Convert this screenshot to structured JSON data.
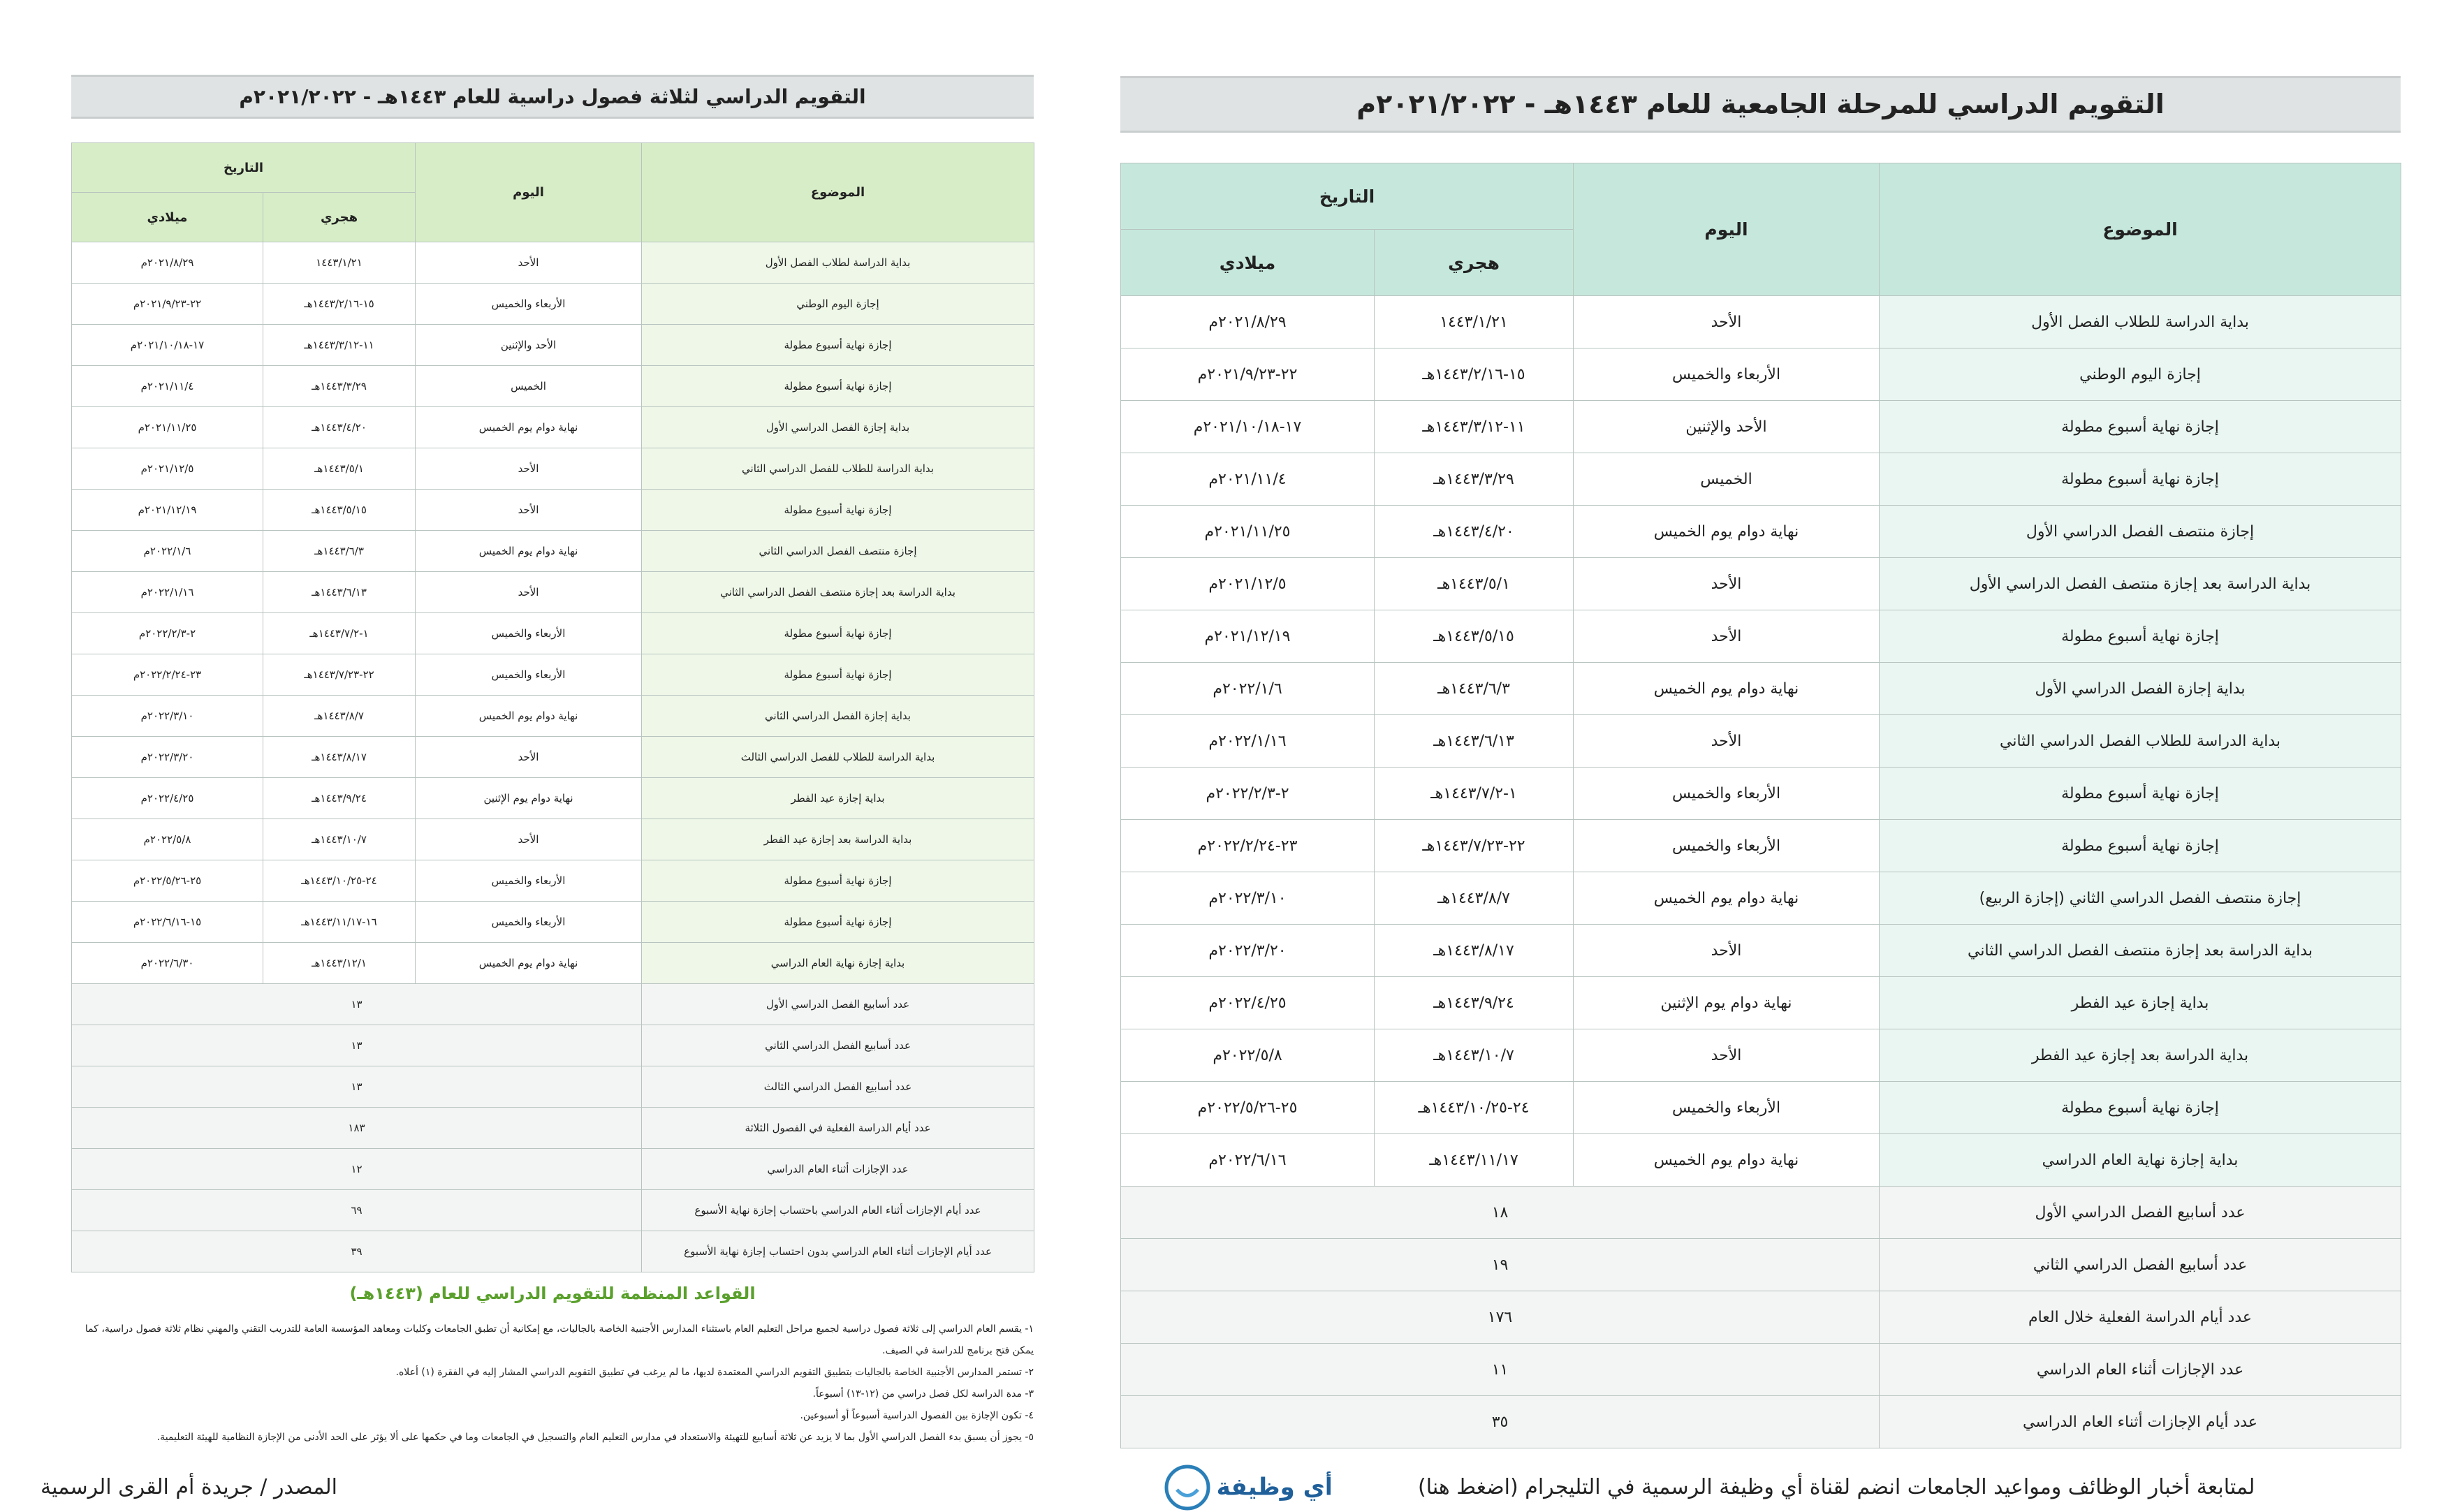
{
  "right": {
    "title": "التقويم الدراسي للمرحلة الجامعية للعام ١٤٤٣هـ - ٢٠٢١/٢٠٢٢م",
    "headers": {
      "topic": "الموضوع",
      "day": "اليوم",
      "date": "التاريخ",
      "hijri": "هجري",
      "gregorian": "ميلادي"
    },
    "rows": [
      [
        "بداية الدراسة للطلاب الفصل الأول",
        "الأحد",
        "١٤٤٣/١/٢١",
        "٢٠٢١/٨/٢٩م"
      ],
      [
        "إجازة اليوم الوطني",
        "الأربعاء والخميس",
        "١٥-١٤٤٣/٢/١٦هـ",
        "٢٢-٢٠٢١/٩/٢٣م"
      ],
      [
        "إجازة نهاية أسبوع مطولة",
        "الأحد والإثنين",
        "١١-١٤٤٣/٣/١٢هـ",
        "١٧-٢٠٢١/١٠/١٨م"
      ],
      [
        "إجازة نهاية أسبوع مطولة",
        "الخميس",
        "١٤٤٣/٣/٢٩هـ",
        "٢٠٢١/١١/٤م"
      ],
      [
        "إجازة منتصف الفصل الدراسي الأول",
        "نهاية دوام يوم الخميس",
        "١٤٤٣/٤/٢٠هـ",
        "٢٠٢١/١١/٢٥م"
      ],
      [
        "بداية الدراسة بعد إجازة منتصف الفصل الدراسي الأول",
        "الأحد",
        "١٤٤٣/٥/١هـ",
        "٢٠٢١/١٢/٥م"
      ],
      [
        "إجازة نهاية أسبوع مطولة",
        "الأحد",
        "١٤٤٣/٥/١٥هـ",
        "٢٠٢١/١٢/١٩م"
      ],
      [
        "بداية إجازة الفصل الدراسي الأول",
        "نهاية دوام يوم الخميس",
        "١٤٤٣/٦/٣هـ",
        "٢٠٢٢/١/٦م"
      ],
      [
        "بداية الدراسة للطلاب الفصل الدراسي الثاني",
        "الأحد",
        "١٤٤٣/٦/١٣هـ",
        "٢٠٢٢/١/١٦م"
      ],
      [
        "إجازة نهاية أسبوع مطولة",
        "الأربعاء والخميس",
        "١-١٤٤٣/٧/٢هـ",
        "٢-٢٠٢٢/٢/٣م"
      ],
      [
        "إجازة نهاية أسبوع مطولة",
        "الأربعاء والخميس",
        "٢٢-١٤٤٣/٧/٢٣هـ",
        "٢٣-٢٠٢٢/٢/٢٤م"
      ],
      [
        "إجازة منتصف الفصل الدراسي الثاني (إجازة الربيع)",
        "نهاية دوام يوم الخميس",
        "١٤٤٣/٨/٧هـ",
        "٢٠٢٢/٣/١٠م"
      ],
      [
        "بداية الدراسة بعد إجازة منتصف الفصل الدراسي الثاني",
        "الأحد",
        "١٤٤٣/٨/١٧هـ",
        "٢٠٢٢/٣/٢٠م"
      ],
      [
        "بداية إجازة عيد الفطر",
        "نهاية دوام يوم الإثنين",
        "١٤٤٣/٩/٢٤هـ",
        "٢٠٢٢/٤/٢٥م"
      ],
      [
        "بداية الدراسة بعد إجازة عيد الفطر",
        "الأحد",
        "١٤٤٣/١٠/٧هـ",
        "٢٠٢٢/٥/٨م"
      ],
      [
        "إجازة نهاية أسبوع مطولة",
        "الأربعاء والخميس",
        "٢٤-١٤٤٣/١٠/٢٥هـ",
        "٢٥-٢٠٢٢/٥/٢٦م"
      ],
      [
        "بداية إجازة نهاية العام الدراسي",
        "نهاية دوام يوم الخميس",
        "١٤٤٣/١١/١٧هـ",
        "٢٠٢٢/٦/١٦م"
      ]
    ],
    "summary": [
      [
        "عدد أسابيع الفصل الدراسي الأول",
        "١٨"
      ],
      [
        "عدد أسابيع الفصل الدراسي الثاني",
        "١٩"
      ],
      [
        "عدد أيام الدراسة الفعلية خلال العام",
        "١٧٦"
      ],
      [
        "عدد الإجازات أثناء العام الدراسي",
        "١١"
      ],
      [
        "عدد أيام الإجازات أثناء العام الدراسي",
        "٣٥"
      ]
    ]
  },
  "left": {
    "title": "التقويم الدراسي لثلاثة فصول دراسية للعام ١٤٤٣هـ - ٢٠٢١/٢٠٢٢م",
    "headers": {
      "topic": "الموضوع",
      "day": "اليوم",
      "date": "التاريخ",
      "hijri": "هجري",
      "gregorian": "ميلادي"
    },
    "rows": [
      [
        "بداية الدراسة لطلاب الفصل الأول",
        "الأحد",
        "١٤٤٣/١/٢١",
        "٢٠٢١/٨/٢٩م"
      ],
      [
        "إجازة اليوم الوطني",
        "الأربعاء والخميس",
        "١٥-١٤٤٣/٢/١٦هـ",
        "٢٢-٢٠٢١/٩/٢٣م"
      ],
      [
        "إجازة نهاية أسبوع مطولة",
        "الأحد والإثنين",
        "١١-١٤٤٣/٣/١٢هـ",
        "١٧-٢٠٢١/١٠/١٨م"
      ],
      [
        "إجازة نهاية أسبوع مطولة",
        "الخميس",
        "١٤٤٣/٣/٢٩هـ",
        "٢٠٢١/١١/٤م"
      ],
      [
        "بداية إجازة الفصل الدراسي الأول",
        "نهاية دوام يوم الخميس",
        "١٤٤٣/٤/٢٠هـ",
        "٢٠٢١/١١/٢٥م"
      ],
      [
        "بداية الدراسة للطلاب للفصل الدراسي الثاني",
        "الأحد",
        "١٤٤٣/٥/١هـ",
        "٢٠٢١/١٢/٥م"
      ],
      [
        "إجازة نهاية أسبوع مطولة",
        "الأحد",
        "١٤٤٣/٥/١٥هـ",
        "٢٠٢١/١٢/١٩م"
      ],
      [
        "إجازة منتصف الفصل الدراسي الثاني",
        "نهاية دوام يوم الخميس",
        "١٤٤٣/٦/٣هـ",
        "٢٠٢٢/١/٦م"
      ],
      [
        "بداية الدراسة بعد إجازة منتصف الفصل الدراسي الثاني",
        "الأحد",
        "١٤٤٣/٦/١٣هـ",
        "٢٠٢٢/١/١٦م"
      ],
      [
        "إجازة نهاية أسبوع مطولة",
        "الأربعاء والخميس",
        "١-١٤٤٣/٧/٢هـ",
        "٢-٢٠٢٢/٢/٣م"
      ],
      [
        "إجازة نهاية أسبوع مطولة",
        "الأربعاء والخميس",
        "٢٢-١٤٤٣/٧/٢٣هـ",
        "٢٣-٢٠٢٢/٢/٢٤م"
      ],
      [
        "بداية إجازة الفصل الدراسي الثاني",
        "نهاية دوام يوم الخميس",
        "١٤٤٣/٨/٧هـ",
        "٢٠٢٢/٣/١٠م"
      ],
      [
        "بداية الدراسة للطلاب للفصل الدراسي الثالث",
        "الأحد",
        "١٤٤٣/٨/١٧هـ",
        "٢٠٢٢/٣/٢٠م"
      ],
      [
        "بداية إجازة عيد الفطر",
        "نهاية دوام يوم الإثنين",
        "١٤٤٣/٩/٢٤هـ",
        "٢٠٢٢/٤/٢٥م"
      ],
      [
        "بداية الدراسة بعد إجازة عيد الفطر",
        "الأحد",
        "١٤٤٣/١٠/٧هـ",
        "٢٠٢٢/٥/٨م"
      ],
      [
        "إجازة نهاية أسبوع مطولة",
        "الأربعاء والخميس",
        "٢٤-١٤٤٣/١٠/٢٥هـ",
        "٢٥-٢٠٢٢/٥/٢٦م"
      ],
      [
        "إجازة نهاية أسبوع مطولة",
        "الأربعاء والخميس",
        "١٦-١٤٤٣/١١/١٧هـ",
        "١٥-٢٠٢٢/٦/١٦م"
      ],
      [
        "بداية إجازة نهاية العام الدراسي",
        "نهاية دوام يوم الخميس",
        "١٤٤٣/١٢/١هـ",
        "٢٠٢٢/٦/٣٠م"
      ]
    ],
    "summary": [
      [
        "عدد أسابيع الفصل الدراسي الأول",
        "١٣"
      ],
      [
        "عدد أسابيع الفصل الدراسي الثاني",
        "١٣"
      ],
      [
        "عدد أسابيع الفصل الدراسي الثالث",
        "١٣"
      ],
      [
        "عدد أيام الدراسة الفعلية في الفصول الثلاثة",
        "١٨٣"
      ],
      [
        "عدد الإجازات أثناء العام الدراسي",
        "١٢"
      ],
      [
        "عدد أيام الإجازات أثناء العام الدراسي باحتساب إجازة نهاية الأسبوع",
        "٦٩"
      ],
      [
        "عدد أيام الإجازات أثناء العام الدراسي بدون احتساب إجازة نهاية الأسبوع",
        "٣٩"
      ]
    ]
  },
  "rules": {
    "title": "القواعد المنظمة للتقويم الدراسي للعام (١٤٤٣هـ)",
    "items": [
      "١- يقسم العام الدراسي إلى ثلاثة فصول دراسية لجميع مراحل التعليم العام باستثناء المدارس الأجنبية الخاصة بالجاليات، مع إمكانية أن تطبق الجامعات وكليات ومعاهد المؤسسة العامة للتدريب التقني والمهني نظام ثلاثة فصول دراسية، كما يمكن فتح برنامج للدراسة في الصيف.",
      "٢- تستمر المدارس الأجنبية الخاصة بالجاليات بتطبيق التقويم الدراسي المعتمدة لديها، ما لم يرغب في تطبيق التقويم الدراسي المشار إليه في الفقرة (١) أعلاه.",
      "٣- مدة الدراسة لكل فصل دراسي من (١٢-١٣) أسبوعاً.",
      "٤- تكون الإجازة بين الفصول الدراسية أسبوعاً أو أسبوعين.",
      "٥- يجوز أن يسبق بدء الفصل الدراسي الأول بما لا يزيد عن ثلاثة أسابيع للتهيئة والاستعداد في مدارس التعليم العام والتسجيل في الجامعات وما في حكمها على ألا يؤثر على الحد الأدنى من الإجازة النظامية للهيئة التعليمية."
    ]
  },
  "footer": {
    "source": "المصدر / جريدة أم القرى الرسمية",
    "telegram": "لمتابعة أخبار الوظائف ومواعيد الجامعات انضم لقناة أي وظيفة الرسمية في التليجرام (اضغط هنا)",
    "logo": "أي وظيفة"
  }
}
